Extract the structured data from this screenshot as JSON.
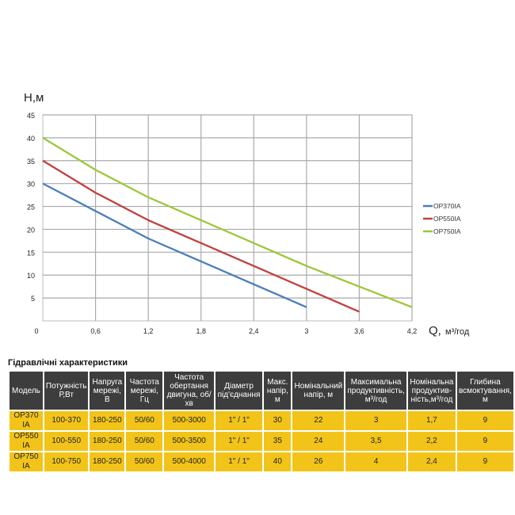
{
  "chart_data": {
    "type": "line",
    "ylabel": "H,м",
    "xlabel": "Q,",
    "xunit": "м³/год",
    "xlim": [
      0,
      4.2
    ],
    "ylim": [
      0,
      45
    ],
    "xticks": [
      "0",
      "0,6",
      "1,2",
      "1,8",
      "2,4",
      "3",
      "3,6",
      "4,2"
    ],
    "xtick_values": [
      0,
      0.6,
      1.2,
      1.8,
      2.4,
      3,
      3.6,
      4.2
    ],
    "yticks": [
      5,
      10,
      15,
      20,
      25,
      30,
      35,
      40,
      45
    ],
    "grid": true,
    "legend": "right",
    "series": [
      {
        "name": "OP370IA",
        "color": "#4a7ebb",
        "x": [
          0,
          0.6,
          1.2,
          1.8,
          2.4,
          3
        ],
        "y": [
          30,
          24,
          18,
          13,
          8,
          3
        ]
      },
      {
        "name": "OP550IA",
        "color": "#c0413d",
        "x": [
          0,
          0.6,
          1.2,
          1.8,
          2.4,
          3,
          3.6
        ],
        "y": [
          35,
          28,
          22,
          17,
          12,
          7,
          2
        ]
      },
      {
        "name": "OP750IA",
        "color": "#9bc83a",
        "x": [
          0,
          0.6,
          1.2,
          1.8,
          2.4,
          3,
          3.6,
          4.2
        ],
        "y": [
          40,
          33,
          27,
          22,
          17,
          12,
          7.5,
          3
        ]
      }
    ]
  },
  "table": {
    "title": "Гідравлічні характеристики",
    "headers": [
      "Модель",
      "Потужність Р,Вт",
      "Напруга мережі, В",
      "Частота мережі, Гц",
      "Частота обертання двигуна, об/хв",
      "Діаметр під'єднання",
      "Макс. напір, м",
      "Номінальний напір, м",
      "Максимальна продуктивність, м³/год",
      "Номінальна продуктив-ність,м³/год",
      "Глибина всмоктування, м"
    ],
    "rows": [
      [
        "OP370 IA",
        "100-370",
        "180-250",
        "50/60",
        "500-3000",
        "1\" / 1\"",
        "30",
        "22",
        "3",
        "1,7",
        "9"
      ],
      [
        "OP550 IA",
        "100-550",
        "180-250",
        "50/60",
        "500-3500",
        "1\" / 1\"",
        "35",
        "24",
        "3,5",
        "2,2",
        "9"
      ],
      [
        "OP750 IA",
        "100-750",
        "180-250",
        "50/60",
        "500-4000",
        "1\" / 1\"",
        "40",
        "26",
        "4",
        "2,4",
        "9"
      ]
    ]
  }
}
